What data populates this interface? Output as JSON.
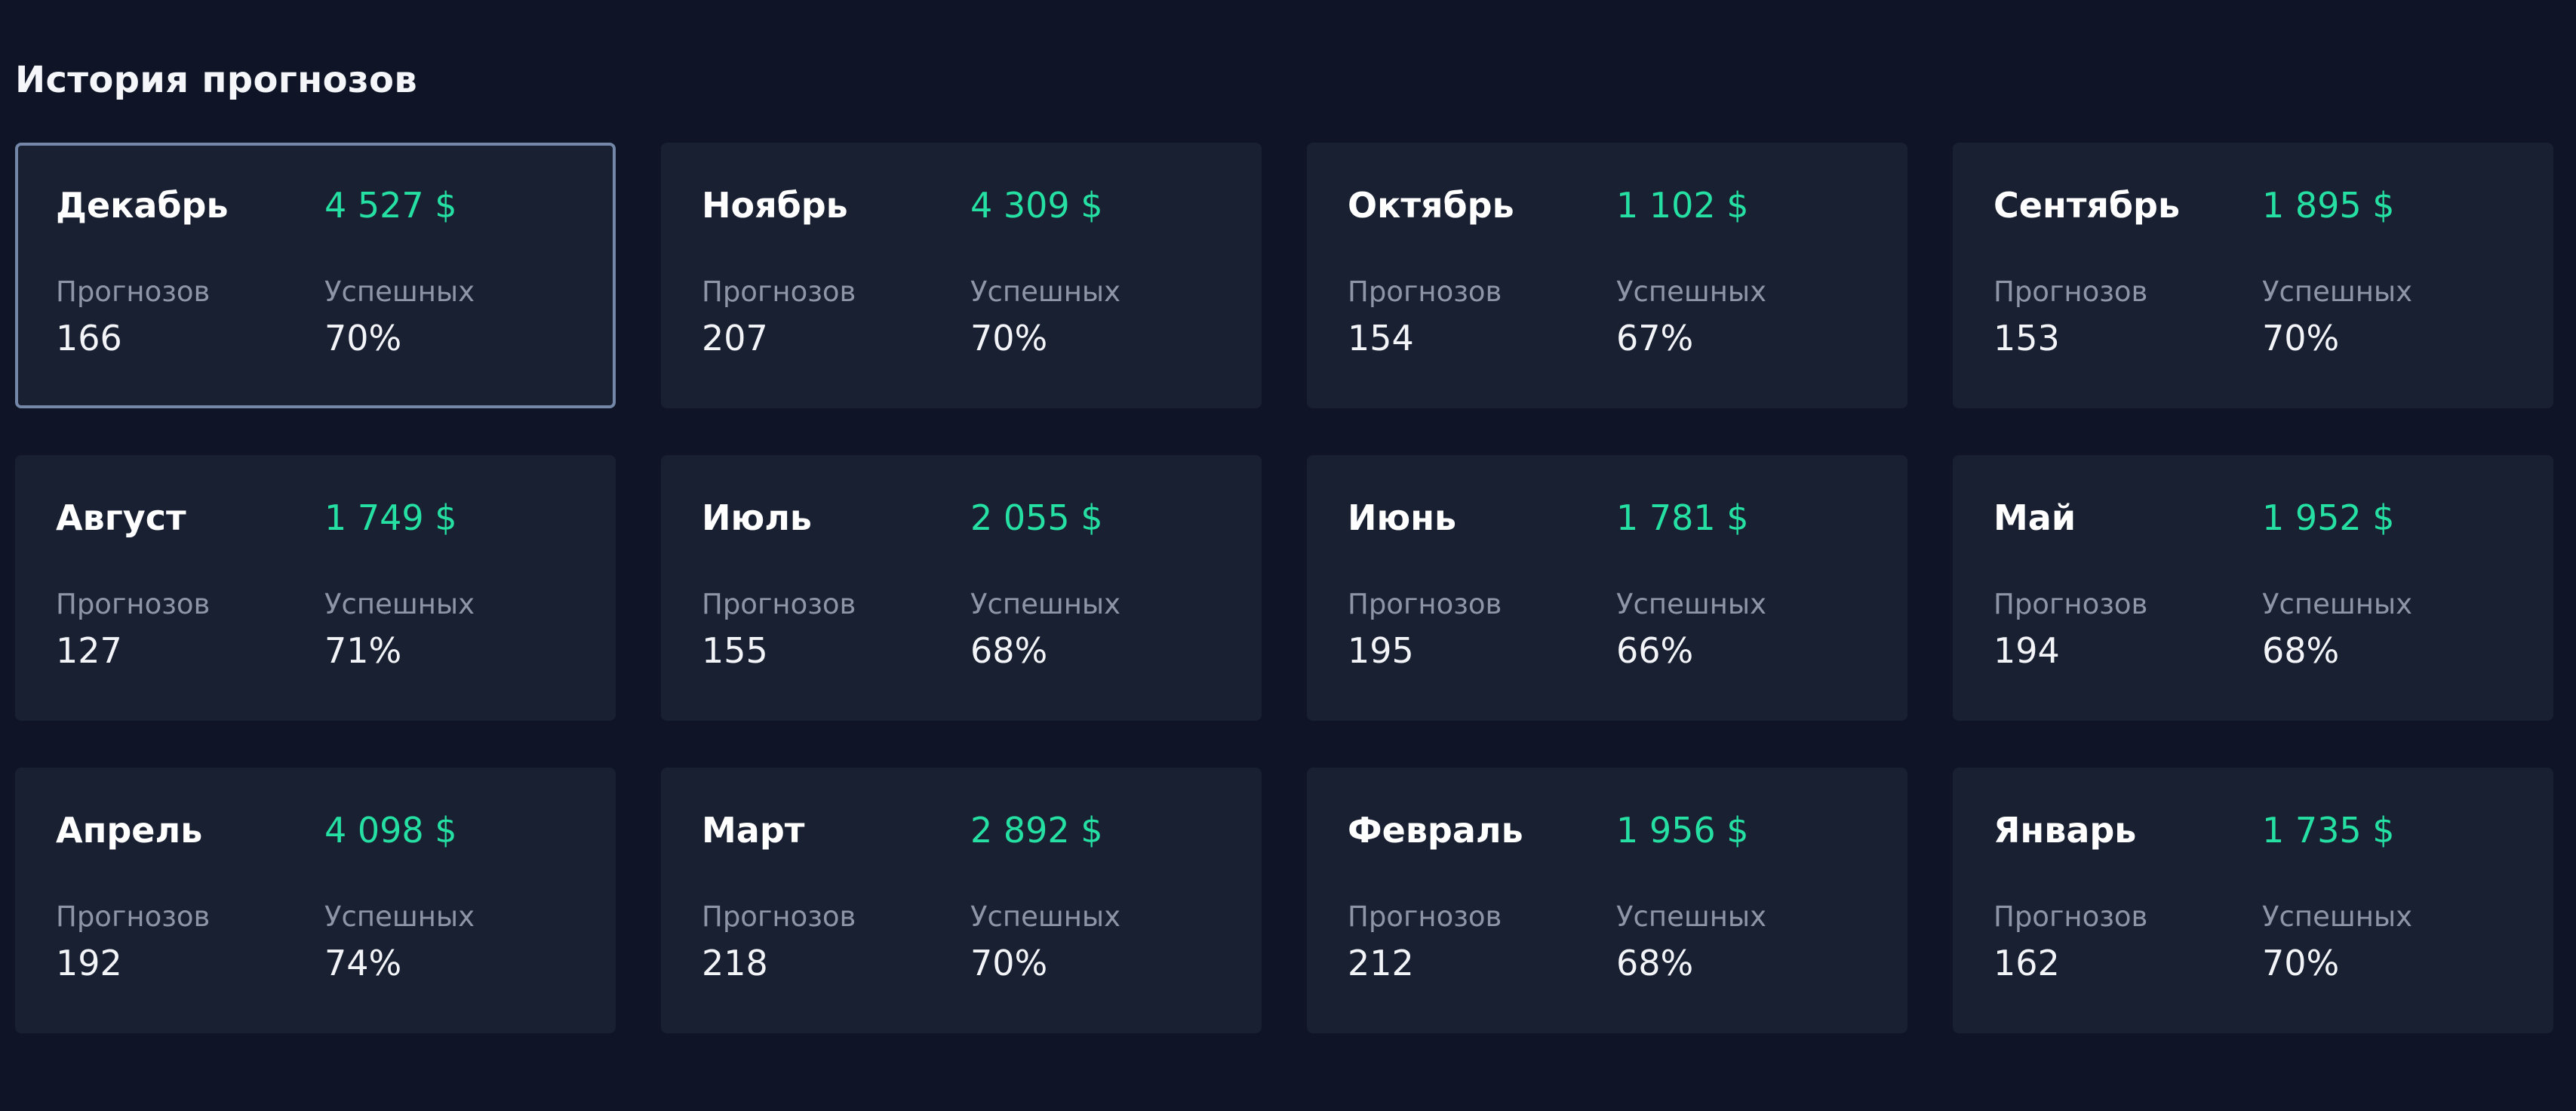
{
  "page": {
    "title": "История прогнозов"
  },
  "colors": {
    "background": "#0f1526",
    "card": "#182032",
    "selected_border": "#7487a8",
    "amount": "#25e0a2",
    "label": "#8d95a6",
    "text": "#ffffff"
  },
  "labels": {
    "forecasts": "Прогнозов",
    "successful": "Успешных"
  },
  "cards": [
    {
      "month": "Декабрь",
      "amount": "4 527 $",
      "forecasts": "166",
      "success": "70%",
      "selected": true
    },
    {
      "month": "Ноябрь",
      "amount": "4 309 $",
      "forecasts": "207",
      "success": "70%",
      "selected": false
    },
    {
      "month": "Октябрь",
      "amount": "1 102 $",
      "forecasts": "154",
      "success": "67%",
      "selected": false
    },
    {
      "month": "Сентябрь",
      "amount": "1 895 $",
      "forecasts": "153",
      "success": "70%",
      "selected": false
    },
    {
      "month": "Август",
      "amount": "1 749 $",
      "forecasts": "127",
      "success": "71%",
      "selected": false
    },
    {
      "month": "Июль",
      "amount": "2 055 $",
      "forecasts": "155",
      "success": "68%",
      "selected": false
    },
    {
      "month": "Июнь",
      "amount": "1 781 $",
      "forecasts": "195",
      "success": "66%",
      "selected": false
    },
    {
      "month": "Май",
      "amount": "1 952 $",
      "forecasts": "194",
      "success": "68%",
      "selected": false
    },
    {
      "month": "Апрель",
      "amount": "4 098 $",
      "forecasts": "192",
      "success": "74%",
      "selected": false
    },
    {
      "month": "Март",
      "amount": "2 892 $",
      "forecasts": "218",
      "success": "70%",
      "selected": false
    },
    {
      "month": "Февраль",
      "amount": "1 956 $",
      "forecasts": "212",
      "success": "68%",
      "selected": false
    },
    {
      "month": "Январь",
      "amount": "1 735 $",
      "forecasts": "162",
      "success": "70%",
      "selected": false
    }
  ]
}
